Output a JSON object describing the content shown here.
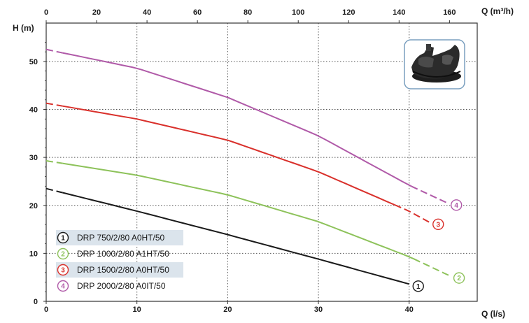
{
  "chart_data": {
    "type": "line",
    "ylabel": "H (m)",
    "xlabel_bottom": "Q (l/s)",
    "xlabel_top": "Q (m³/h)",
    "xlim_bottom": [
      0,
      47.5
    ],
    "xlim_top": [
      0,
      171
    ],
    "ylim": [
      0,
      58
    ],
    "x_ticks_bottom": [
      "0",
      "10",
      "20",
      "30",
      "40"
    ],
    "x_ticks_top": [
      "0",
      "20",
      "40",
      "60",
      "80",
      "100",
      "120",
      "140",
      "160"
    ],
    "y_ticks": [
      "0",
      "10",
      "20",
      "30",
      "40",
      "50"
    ],
    "grid": true,
    "legend_position": "bottom-left",
    "series": [
      {
        "name": "DRP 750/2/80 A0HT/50",
        "marker": "1",
        "color": "#1a1a1a",
        "x": [
          0,
          10,
          20,
          30,
          40
        ],
        "y": [
          23.5,
          18.8,
          13.9,
          8.8,
          3.6
        ]
      },
      {
        "name": "DRP 1000/2/80 A1HT/50",
        "marker": "2",
        "color": "#8dc25a",
        "x": [
          0,
          10,
          20,
          30,
          40,
          44.5
        ],
        "y": [
          29.3,
          26.3,
          22.2,
          16.6,
          9.3,
          5.3
        ]
      },
      {
        "name": "DRP 1500/2/80 A0HT/50",
        "marker": "3",
        "color": "#d9302b",
        "x": [
          0,
          10,
          20,
          30,
          40,
          42.2
        ],
        "y": [
          41.3,
          38.0,
          33.6,
          27.0,
          18.8,
          16.5
        ]
      },
      {
        "name": "DRP 2000/2/80 A0IT/50",
        "marker": "4",
        "color": "#b05aa8",
        "x": [
          0,
          10,
          20,
          30,
          40,
          44.2
        ],
        "y": [
          52.5,
          48.6,
          42.5,
          34.5,
          24.2,
          20.5
        ]
      }
    ]
  },
  "colors": {
    "legend_band": "#dbe4ec",
    "grid": "#555555",
    "photo_frame": "#7a9fbf"
  },
  "icons": {
    "product_photo": "pump-product-icon"
  }
}
